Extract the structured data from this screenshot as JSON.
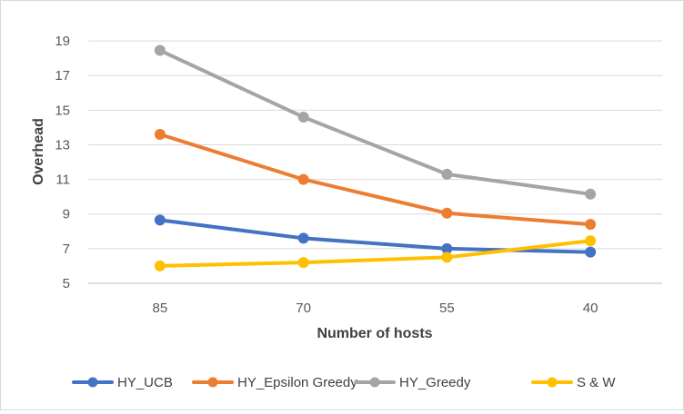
{
  "chart_data": {
    "type": "line",
    "categories": [
      "85",
      "70",
      "55",
      "40"
    ],
    "xlabel": "Number of hosts",
    "ylabel": "Overhead",
    "ylim": [
      5,
      20
    ],
    "yticks": [
      5,
      7,
      9,
      11,
      13,
      15,
      17,
      19
    ],
    "grid": true,
    "legend_position": "bottom",
    "series": [
      {
        "name": "HY_UCB",
        "color": "#4472c4",
        "values": [
          8.65,
          7.6,
          7.0,
          6.8
        ]
      },
      {
        "name": "HY_Epsilon Greedy",
        "color": "#ed7d31",
        "values": [
          13.6,
          11.0,
          9.05,
          8.4
        ]
      },
      {
        "name": "HY_Greedy",
        "color": "#a5a5a5",
        "values": [
          18.45,
          14.6,
          11.3,
          10.15
        ]
      },
      {
        "name": "S & W",
        "color": "#ffc000",
        "values": [
          6.0,
          6.2,
          6.5,
          7.45
        ]
      }
    ]
  }
}
